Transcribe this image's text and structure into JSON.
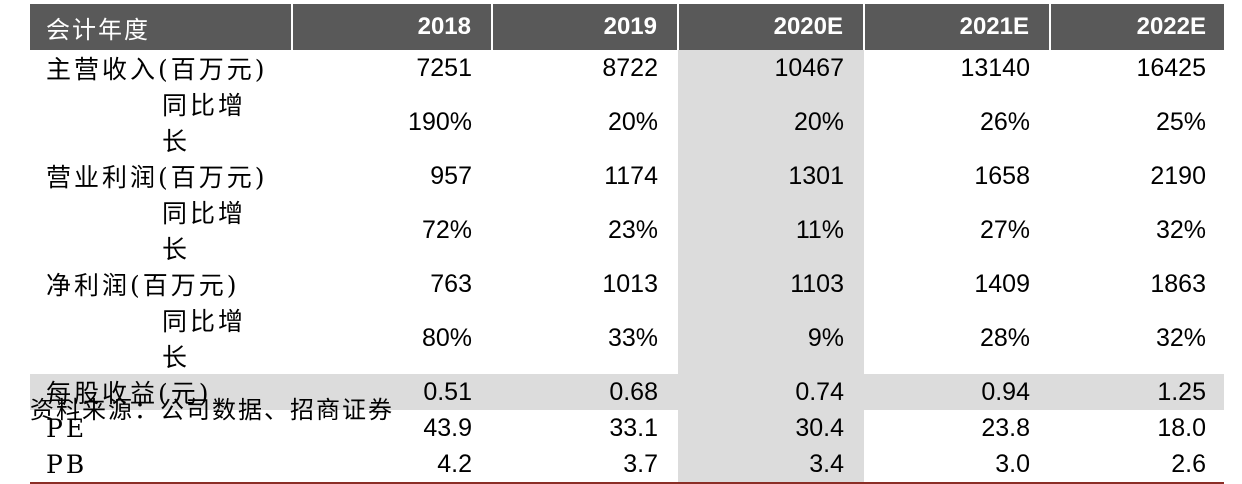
{
  "table": {
    "headers": [
      "会计年度",
      "2018",
      "2019",
      "2020E",
      "2021E",
      "2022E"
    ],
    "rows": [
      {
        "label": "主营收入(百万元)",
        "sub": false,
        "values": [
          "7251",
          "8722",
          "10467",
          "13140",
          "16425"
        ]
      },
      {
        "label": "同比增长",
        "sub": true,
        "values": [
          "190%",
          "20%",
          "20%",
          "26%",
          "25%"
        ]
      },
      {
        "label": "营业利润(百万元)",
        "sub": false,
        "values": [
          "957",
          "1174",
          "1301",
          "1658",
          "2190"
        ]
      },
      {
        "label": "同比增长",
        "sub": true,
        "values": [
          "72%",
          "23%",
          "11%",
          "27%",
          "32%"
        ]
      },
      {
        "label": "净利润(百万元)",
        "sub": false,
        "values": [
          "763",
          "1013",
          "1103",
          "1409",
          "1863"
        ]
      },
      {
        "label": "同比增长",
        "sub": true,
        "values": [
          "80%",
          "33%",
          "9%",
          "28%",
          "32%"
        ]
      },
      {
        "label": "每股收益(元)",
        "sub": false,
        "values": [
          "0.51",
          "0.68",
          "0.74",
          "0.94",
          "1.25"
        ]
      },
      {
        "label": "PE",
        "sub": false,
        "values": [
          "43.9",
          "33.1",
          "30.4",
          "23.8",
          "18.0"
        ]
      },
      {
        "label": "PB",
        "sub": false,
        "values": [
          "4.2",
          "3.7",
          "3.4",
          "3.0",
          "2.6"
        ]
      }
    ]
  },
  "source": "资料来源：公司数据、招商证券",
  "colors": {
    "header_bg": "#595959",
    "highlight": "#dcdcdc",
    "rule": "#8b2e26"
  }
}
